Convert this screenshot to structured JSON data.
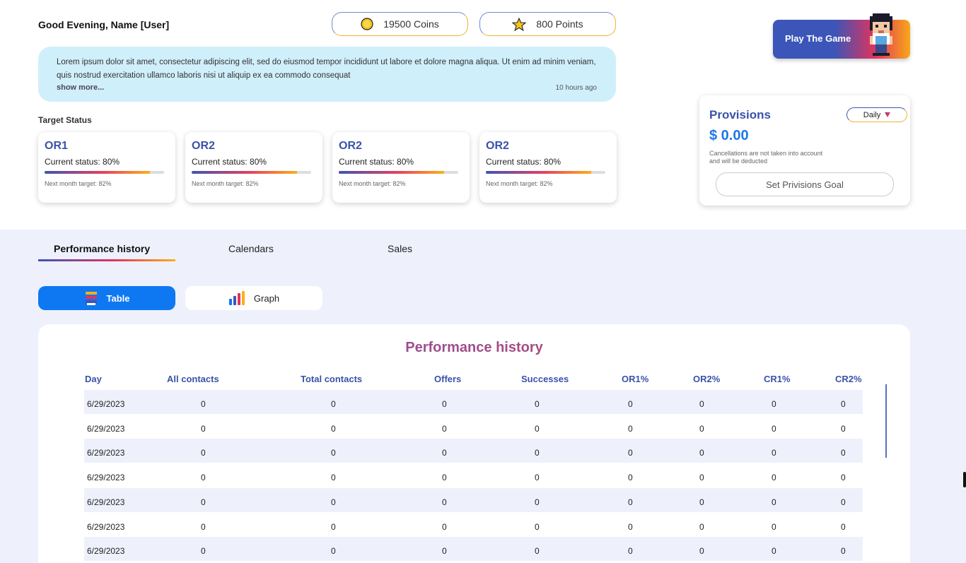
{
  "header": {
    "greeting": "Good Evening, Name [User]",
    "coins": "19500 Coins",
    "points": "800 Points",
    "coin_icon": "coin-icon",
    "star_icon": "star-icon"
  },
  "message": {
    "text": "Lorem ipsum dolor sit amet, consectetur adipiscing elit, sed do eiusmod tempor incididunt ut labore et dolore magna aliqua. Ut enim ad minim veniam, quis nostrud exercitation ullamco laboris nisi ut aliquip ex ea commodo consequat",
    "show_more": "show more...",
    "time_ago": "10 hours ago"
  },
  "target_status": {
    "title": "Target Status",
    "cards": [
      {
        "name": "OR1",
        "current": "Current status: 80%",
        "progress": 0.88,
        "next": "Next month target: 82%"
      },
      {
        "name": "OR2",
        "current": "Current status: 80%",
        "progress": 0.88,
        "next": "Next month target: 82%"
      },
      {
        "name": "OR2",
        "current": "Current status: 80%",
        "progress": 0.88,
        "next": "Next month target: 82%"
      },
      {
        "name": "OR2",
        "current": "Current status: 80%",
        "progress": 0.88,
        "next": "Next month target: 82%"
      }
    ]
  },
  "play": {
    "label": "Play The Game"
  },
  "provisions": {
    "title": "Provisions",
    "amount": "$ 0.00",
    "period": "Daily",
    "note_line1": "Cancellations are not taken into account",
    "note_line2": "and will be deducted",
    "goal_button": "Set Privisions Goal"
  },
  "tabs": [
    {
      "label": "Performance history",
      "active": true
    },
    {
      "label": "Calendars",
      "active": false
    },
    {
      "label": "Sales",
      "active": false
    }
  ],
  "view_toggle": {
    "table": "Table",
    "graph": "Graph"
  },
  "table": {
    "title": "Performance history",
    "columns": [
      "Day",
      "All contacts",
      "Total contacts",
      "Offers",
      "Successes",
      "OR1%",
      "OR2%",
      "CR1%",
      "CR2%"
    ],
    "rows": [
      [
        "6/29/2023",
        "0",
        "0",
        "0",
        "0",
        "0",
        "0",
        "0",
        "0"
      ],
      [
        "6/29/2023",
        "0",
        "0",
        "0",
        "0",
        "0",
        "0",
        "0",
        "0"
      ],
      [
        "6/29/2023",
        "0",
        "0",
        "0",
        "0",
        "0",
        "0",
        "0",
        "0"
      ],
      [
        "6/29/2023",
        "0",
        "0",
        "0",
        "0",
        "0",
        "0",
        "0",
        "0"
      ],
      [
        "6/29/2023",
        "0",
        "0",
        "0",
        "0",
        "0",
        "0",
        "0",
        "0"
      ],
      [
        "6/29/2023",
        "0",
        "0",
        "0",
        "0",
        "0",
        "0",
        "0",
        "0"
      ],
      [
        "6/29/2023",
        "0",
        "0",
        "0",
        "0",
        "0",
        "0",
        "0",
        "0"
      ]
    ]
  },
  "colors": {
    "primary_blue": "#3a52a8",
    "accent_blue": "#0d78f2",
    "gold": "#f0b233",
    "pink": "#e3325c"
  }
}
